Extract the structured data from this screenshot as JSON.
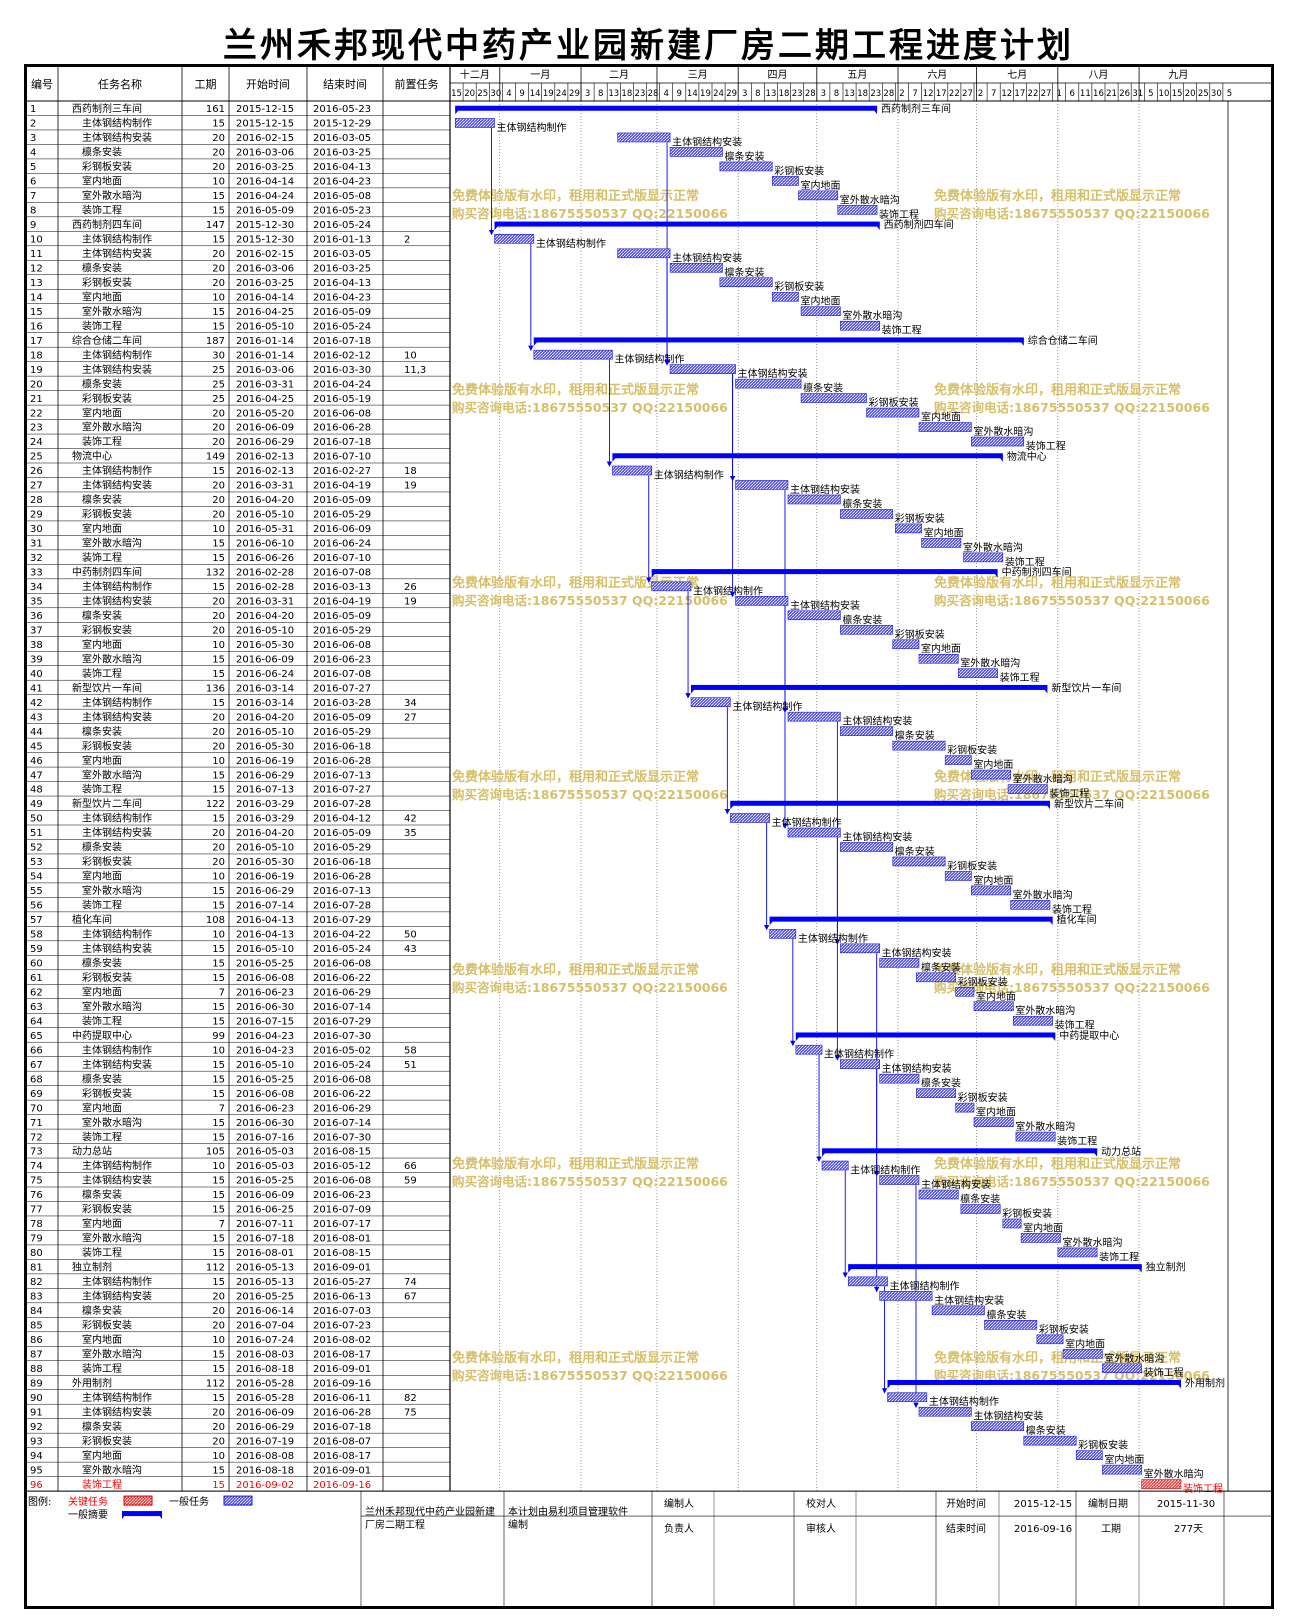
{
  "title": "兰州禾邦现代中药产业园新建厂房二期工程进度计划",
  "columns": [
    "编号",
    "任务名称",
    "工期",
    "开始时间",
    "结束时间",
    "前置任务"
  ],
  "months": [
    "十二月",
    "一月",
    "二月",
    "三月",
    "四月",
    "五月",
    "六月",
    "七月",
    "八月",
    "九月"
  ],
  "days": [
    "15",
    "20",
    "25",
    "30",
    "4",
    "9",
    "14",
    "19",
    "24",
    "29",
    "3",
    "8",
    "13",
    "18",
    "23",
    "28",
    "4",
    "9",
    "14",
    "19",
    "24",
    "29",
    "3",
    "8",
    "13",
    "18",
    "23",
    "28",
    "3",
    "8",
    "13",
    "18",
    "23",
    "28",
    "2",
    "7",
    "12",
    "17",
    "22",
    "27",
    "2",
    "7",
    "12",
    "17",
    "22",
    "27",
    "1",
    "6",
    "11",
    "16",
    "21",
    "26",
    "31",
    "5",
    "10",
    "15",
    "20",
    "25",
    "30",
    "5"
  ],
  "watermark": [
    "免费体验版有水印，租用和正式版显示正常",
    "购买咨询电话:18675550537 QQ:22150066"
  ],
  "legend": {
    "label": "图例:",
    "critical": "关键任务",
    "general": "一般任务",
    "summary": "一般摘要"
  },
  "footer": {
    "project": "兰州禾邦现代中药产业园新建厂房二期工程",
    "software": "本计划由易利项目管理软件编制",
    "labels": [
      "编制人",
      "负责人",
      "校对人",
      "审核人",
      "开始时间",
      "结束时间",
      "编制日期",
      "工期"
    ],
    "start": "2015-12-15",
    "end": "2016-09-16",
    "date": "2015-11-30",
    "duration": "277天"
  },
  "colors": {
    "bar": "#3333ee",
    "summary": "#0000ff",
    "critical": "#ff3333",
    "watermark": "#d7bf6a"
  },
  "chart_data": {
    "type": "gantt",
    "x_range": [
      "2015-12-15",
      "2016-09-30"
    ],
    "tasks": [
      {
        "id": "1",
        "name": "西药制剂三车间",
        "dur": "161",
        "start": "2015-12-15",
        "end": "2016-05-23",
        "pred": "",
        "summary": true
      },
      {
        "id": "2",
        "name": "主体钢结构制作",
        "dur": "15",
        "start": "2015-12-15",
        "end": "2015-12-29",
        "pred": ""
      },
      {
        "id": "3",
        "name": "主体钢结构安装",
        "dur": "20",
        "start": "2016-02-15",
        "end": "2016-03-05",
        "pred": ""
      },
      {
        "id": "4",
        "name": "檩条安装",
        "dur": "20",
        "start": "2016-03-06",
        "end": "2016-03-25",
        "pred": ""
      },
      {
        "id": "5",
        "name": "彩钢板安装",
        "dur": "20",
        "start": "2016-03-25",
        "end": "2016-04-13",
        "pred": ""
      },
      {
        "id": "6",
        "name": "室内地面",
        "dur": "10",
        "start": "2016-04-14",
        "end": "2016-04-23",
        "pred": ""
      },
      {
        "id": "7",
        "name": "室外散水暗沟",
        "dur": "15",
        "start": "2016-04-24",
        "end": "2016-05-08",
        "pred": ""
      },
      {
        "id": "8",
        "name": "装饰工程",
        "dur": "15",
        "start": "2016-05-09",
        "end": "2016-05-23",
        "pred": ""
      },
      {
        "id": "9",
        "name": "西药制剂四车间",
        "dur": "147",
        "start": "2015-12-30",
        "end": "2016-05-24",
        "pred": "",
        "summary": true
      },
      {
        "id": "10",
        "name": "主体钢结构制作",
        "dur": "15",
        "start": "2015-12-30",
        "end": "2016-01-13",
        "pred": "2"
      },
      {
        "id": "11",
        "name": "主体钢结构安装",
        "dur": "20",
        "start": "2016-02-15",
        "end": "2016-03-05",
        "pred": ""
      },
      {
        "id": "12",
        "name": "檩条安装",
        "dur": "20",
        "start": "2016-03-06",
        "end": "2016-03-25",
        "pred": ""
      },
      {
        "id": "13",
        "name": "彩钢板安装",
        "dur": "20",
        "start": "2016-03-25",
        "end": "2016-04-13",
        "pred": ""
      },
      {
        "id": "14",
        "name": "室内地面",
        "dur": "10",
        "start": "2016-04-14",
        "end": "2016-04-23",
        "pred": ""
      },
      {
        "id": "15",
        "name": "室外散水暗沟",
        "dur": "15",
        "start": "2016-04-25",
        "end": "2016-05-09",
        "pred": ""
      },
      {
        "id": "16",
        "name": "装饰工程",
        "dur": "15",
        "start": "2016-05-10",
        "end": "2016-05-24",
        "pred": ""
      },
      {
        "id": "17",
        "name": "综合仓储二车间",
        "dur": "187",
        "start": "2016-01-14",
        "end": "2016-07-18",
        "pred": "",
        "summary": true
      },
      {
        "id": "18",
        "name": "主体钢结构制作",
        "dur": "30",
        "start": "2016-01-14",
        "end": "2016-02-12",
        "pred": "10"
      },
      {
        "id": "19",
        "name": "主体钢结构安装",
        "dur": "25",
        "start": "2016-03-06",
        "end": "2016-03-30",
        "pred": "11,3"
      },
      {
        "id": "20",
        "name": "檩条安装",
        "dur": "25",
        "start": "2016-03-31",
        "end": "2016-04-24",
        "pred": ""
      },
      {
        "id": "21",
        "name": "彩钢板安装",
        "dur": "25",
        "start": "2016-04-25",
        "end": "2016-05-19",
        "pred": ""
      },
      {
        "id": "22",
        "name": "室内地面",
        "dur": "20",
        "start": "2016-05-20",
        "end": "2016-06-08",
        "pred": ""
      },
      {
        "id": "23",
        "name": "室外散水暗沟",
        "dur": "20",
        "start": "2016-06-09",
        "end": "2016-06-28",
        "pred": ""
      },
      {
        "id": "24",
        "name": "装饰工程",
        "dur": "20",
        "start": "2016-06-29",
        "end": "2016-07-18",
        "pred": ""
      },
      {
        "id": "25",
        "name": "物流中心",
        "dur": "149",
        "start": "2016-02-13",
        "end": "2016-07-10",
        "pred": "",
        "summary": true
      },
      {
        "id": "26",
        "name": "主体钢结构制作",
        "dur": "15",
        "start": "2016-02-13",
        "end": "2016-02-27",
        "pred": "18"
      },
      {
        "id": "27",
        "name": "主体钢结构安装",
        "dur": "20",
        "start": "2016-03-31",
        "end": "2016-04-19",
        "pred": "19"
      },
      {
        "id": "28",
        "name": "檩条安装",
        "dur": "20",
        "start": "2016-04-20",
        "end": "2016-05-09",
        "pred": ""
      },
      {
        "id": "29",
        "name": "彩钢板安装",
        "dur": "20",
        "start": "2016-05-10",
        "end": "2016-05-29",
        "pred": ""
      },
      {
        "id": "30",
        "name": "室内地面",
        "dur": "10",
        "start": "2016-05-31",
        "end": "2016-06-09",
        "pred": ""
      },
      {
        "id": "31",
        "name": "室外散水暗沟",
        "dur": "15",
        "start": "2016-06-10",
        "end": "2016-06-24",
        "pred": ""
      },
      {
        "id": "32",
        "name": "装饰工程",
        "dur": "15",
        "start": "2016-06-26",
        "end": "2016-07-10",
        "pred": ""
      },
      {
        "id": "33",
        "name": "中药制剂四车间",
        "dur": "132",
        "start": "2016-02-28",
        "end": "2016-07-08",
        "pred": "",
        "summary": true
      },
      {
        "id": "34",
        "name": "主体钢结构制作",
        "dur": "15",
        "start": "2016-02-28",
        "end": "2016-03-13",
        "pred": "26"
      },
      {
        "id": "35",
        "name": "主体钢结构安装",
        "dur": "20",
        "start": "2016-03-31",
        "end": "2016-04-19",
        "pred": "19"
      },
      {
        "id": "36",
        "name": "檩条安装",
        "dur": "20",
        "start": "2016-04-20",
        "end": "2016-05-09",
        "pred": ""
      },
      {
        "id": "37",
        "name": "彩钢板安装",
        "dur": "20",
        "start": "2016-05-10",
        "end": "2016-05-29",
        "pred": ""
      },
      {
        "id": "38",
        "name": "室内地面",
        "dur": "10",
        "start": "2016-05-30",
        "end": "2016-06-08",
        "pred": ""
      },
      {
        "id": "39",
        "name": "室外散水暗沟",
        "dur": "15",
        "start": "2016-06-09",
        "end": "2016-06-23",
        "pred": ""
      },
      {
        "id": "40",
        "name": "装饰工程",
        "dur": "15",
        "start": "2016-06-24",
        "end": "2016-07-08",
        "pred": ""
      },
      {
        "id": "41",
        "name": "新型饮片一车间",
        "dur": "136",
        "start": "2016-03-14",
        "end": "2016-07-27",
        "pred": "",
        "summary": true
      },
      {
        "id": "42",
        "name": "主体钢结构制作",
        "dur": "15",
        "start": "2016-03-14",
        "end": "2016-03-28",
        "pred": "34"
      },
      {
        "id": "43",
        "name": "主体钢结构安装",
        "dur": "20",
        "start": "2016-04-20",
        "end": "2016-05-09",
        "pred": "27"
      },
      {
        "id": "44",
        "name": "檩条安装",
        "dur": "20",
        "start": "2016-05-10",
        "end": "2016-05-29",
        "pred": ""
      },
      {
        "id": "45",
        "name": "彩钢板安装",
        "dur": "20",
        "start": "2016-05-30",
        "end": "2016-06-18",
        "pred": ""
      },
      {
        "id": "46",
        "name": "室内地面",
        "dur": "10",
        "start": "2016-06-19",
        "end": "2016-06-28",
        "pred": ""
      },
      {
        "id": "47",
        "name": "室外散水暗沟",
        "dur": "15",
        "start": "2016-06-29",
        "end": "2016-07-13",
        "pred": ""
      },
      {
        "id": "48",
        "name": "装饰工程",
        "dur": "15",
        "start": "2016-07-13",
        "end": "2016-07-27",
        "pred": ""
      },
      {
        "id": "49",
        "name": "新型饮片二车间",
        "dur": "122",
        "start": "2016-03-29",
        "end": "2016-07-28",
        "pred": "",
        "summary": true
      },
      {
        "id": "50",
        "name": "主体钢结构制作",
        "dur": "15",
        "start": "2016-03-29",
        "end": "2016-04-12",
        "pred": "42"
      },
      {
        "id": "51",
        "name": "主体钢结构安装",
        "dur": "20",
        "start": "2016-04-20",
        "end": "2016-05-09",
        "pred": "35"
      },
      {
        "id": "52",
        "name": "檩条安装",
        "dur": "20",
        "start": "2016-05-10",
        "end": "2016-05-29",
        "pred": ""
      },
      {
        "id": "53",
        "name": "彩钢板安装",
        "dur": "20",
        "start": "2016-05-30",
        "end": "2016-06-18",
        "pred": ""
      },
      {
        "id": "54",
        "name": "室内地面",
        "dur": "10",
        "start": "2016-06-19",
        "end": "2016-06-28",
        "pred": ""
      },
      {
        "id": "55",
        "name": "室外散水暗沟",
        "dur": "15",
        "start": "2016-06-29",
        "end": "2016-07-13",
        "pred": ""
      },
      {
        "id": "56",
        "name": "装饰工程",
        "dur": "15",
        "start": "2016-07-14",
        "end": "2016-07-28",
        "pred": ""
      },
      {
        "id": "57",
        "name": "植化车间",
        "dur": "108",
        "start": "2016-04-13",
        "end": "2016-07-29",
        "pred": "",
        "summary": true
      },
      {
        "id": "58",
        "name": "主体钢结构制作",
        "dur": "10",
        "start": "2016-04-13",
        "end": "2016-04-22",
        "pred": "50"
      },
      {
        "id": "59",
        "name": "主体钢结构安装",
        "dur": "15",
        "start": "2016-05-10",
        "end": "2016-05-24",
        "pred": "43"
      },
      {
        "id": "60",
        "name": "檩条安装",
        "dur": "15",
        "start": "2016-05-25",
        "end": "2016-06-08",
        "pred": ""
      },
      {
        "id": "61",
        "name": "彩钢板安装",
        "dur": "15",
        "start": "2016-06-08",
        "end": "2016-06-22",
        "pred": ""
      },
      {
        "id": "62",
        "name": "室内地面",
        "dur": "7",
        "start": "2016-06-23",
        "end": "2016-06-29",
        "pred": ""
      },
      {
        "id": "63",
        "name": "室外散水暗沟",
        "dur": "15",
        "start": "2016-06-30",
        "end": "2016-07-14",
        "pred": ""
      },
      {
        "id": "64",
        "name": "装饰工程",
        "dur": "15",
        "start": "2016-07-15",
        "end": "2016-07-29",
        "pred": ""
      },
      {
        "id": "65",
        "name": "中药提取中心",
        "dur": "99",
        "start": "2016-04-23",
        "end": "2016-07-30",
        "pred": "",
        "summary": true
      },
      {
        "id": "66",
        "name": "主体钢结构制作",
        "dur": "10",
        "start": "2016-04-23",
        "end": "2016-05-02",
        "pred": "58"
      },
      {
        "id": "67",
        "name": "主体钢结构安装",
        "dur": "15",
        "start": "2016-05-10",
        "end": "2016-05-24",
        "pred": "51"
      },
      {
        "id": "68",
        "name": "檩条安装",
        "dur": "15",
        "start": "2016-05-25",
        "end": "2016-06-08",
        "pred": ""
      },
      {
        "id": "69",
        "name": "彩钢板安装",
        "dur": "15",
        "start": "2016-06-08",
        "end": "2016-06-22",
        "pred": ""
      },
      {
        "id": "70",
        "name": "室内地面",
        "dur": "7",
        "start": "2016-06-23",
        "end": "2016-06-29",
        "pred": ""
      },
      {
        "id": "71",
        "name": "室外散水暗沟",
        "dur": "15",
        "start": "2016-06-30",
        "end": "2016-07-14",
        "pred": ""
      },
      {
        "id": "72",
        "name": "装饰工程",
        "dur": "15",
        "start": "2016-07-16",
        "end": "2016-07-30",
        "pred": ""
      },
      {
        "id": "73",
        "name": "动力总站",
        "dur": "105",
        "start": "2016-05-03",
        "end": "2016-08-15",
        "pred": "",
        "summary": true
      },
      {
        "id": "74",
        "name": "主体钢结构制作",
        "dur": "10",
        "start": "2016-05-03",
        "end": "2016-05-12",
        "pred": "66"
      },
      {
        "id": "75",
        "name": "主体钢结构安装",
        "dur": "15",
        "start": "2016-05-25",
        "end": "2016-06-08",
        "pred": "59"
      },
      {
        "id": "76",
        "name": "檩条安装",
        "dur": "15",
        "start": "2016-06-09",
        "end": "2016-06-23",
        "pred": ""
      },
      {
        "id": "77",
        "name": "彩钢板安装",
        "dur": "15",
        "start": "2016-06-25",
        "end": "2016-07-09",
        "pred": ""
      },
      {
        "id": "78",
        "name": "室内地面",
        "dur": "7",
        "start": "2016-07-11",
        "end": "2016-07-17",
        "pred": ""
      },
      {
        "id": "79",
        "name": "室外散水暗沟",
        "dur": "15",
        "start": "2016-07-18",
        "end": "2016-08-01",
        "pred": ""
      },
      {
        "id": "80",
        "name": "装饰工程",
        "dur": "15",
        "start": "2016-08-01",
        "end": "2016-08-15",
        "pred": ""
      },
      {
        "id": "81",
        "name": "独立制剂",
        "dur": "112",
        "start": "2016-05-13",
        "end": "2016-09-01",
        "pred": "",
        "summary": true
      },
      {
        "id": "82",
        "name": "主体钢结构制作",
        "dur": "15",
        "start": "2016-05-13",
        "end": "2016-05-27",
        "pred": "74"
      },
      {
        "id": "83",
        "name": "主体钢结构安装",
        "dur": "20",
        "start": "2016-05-25",
        "end": "2016-06-13",
        "pred": "67"
      },
      {
        "id": "84",
        "name": "檩条安装",
        "dur": "20",
        "start": "2016-06-14",
        "end": "2016-07-03",
        "pred": ""
      },
      {
        "id": "85",
        "name": "彩钢板安装",
        "dur": "20",
        "start": "2016-07-04",
        "end": "2016-07-23",
        "pred": ""
      },
      {
        "id": "86",
        "name": "室内地面",
        "dur": "10",
        "start": "2016-07-24",
        "end": "2016-08-02",
        "pred": ""
      },
      {
        "id": "87",
        "name": "室外散水暗沟",
        "dur": "15",
        "start": "2016-08-03",
        "end": "2016-08-17",
        "pred": ""
      },
      {
        "id": "88",
        "name": "装饰工程",
        "dur": "15",
        "start": "2016-08-18",
        "end": "2016-09-01",
        "pred": ""
      },
      {
        "id": "89",
        "name": "外用制剂",
        "dur": "112",
        "start": "2016-05-28",
        "end": "2016-09-16",
        "pred": "",
        "summary": true
      },
      {
        "id": "90",
        "name": "主体钢结构制作",
        "dur": "15",
        "start": "2016-05-28",
        "end": "2016-06-11",
        "pred": "82"
      },
      {
        "id": "91",
        "name": "主体钢结构安装",
        "dur": "20",
        "start": "2016-06-09",
        "end": "2016-06-28",
        "pred": "75"
      },
      {
        "id": "92",
        "name": "檩条安装",
        "dur": "20",
        "start": "2016-06-29",
        "end": "2016-07-18",
        "pred": ""
      },
      {
        "id": "93",
        "name": "彩钢板安装",
        "dur": "20",
        "start": "2016-07-19",
        "end": "2016-08-07",
        "pred": ""
      },
      {
        "id": "94",
        "name": "室内地面",
        "dur": "10",
        "start": "2016-08-08",
        "end": "2016-08-17",
        "pred": ""
      },
      {
        "id": "95",
        "name": "室外散水暗沟",
        "dur": "15",
        "start": "2016-08-18",
        "end": "2016-09-01",
        "pred": ""
      },
      {
        "id": "96",
        "name": "装饰工程",
        "dur": "15",
        "start": "2016-09-02",
        "end": "2016-09-16",
        "pred": "",
        "critical": true
      }
    ]
  }
}
